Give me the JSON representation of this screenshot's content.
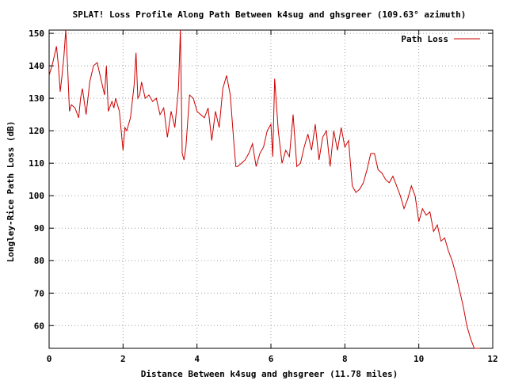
{
  "chart_data": {
    "type": "line",
    "title": "SPLAT! Loss Profile Along Path Between k4sug and ghsgreer (109.63° azimuth)",
    "xlabel": "Distance Between k4sug and ghsgreer (11.78 miles)",
    "ylabel": "Longley-Rice Path Loss (dB)",
    "xlim": [
      0,
      12
    ],
    "ylim": [
      53,
      151
    ],
    "xticks": [
      0,
      2,
      4,
      6,
      8,
      10,
      12
    ],
    "yticks": [
      60,
      70,
      80,
      90,
      100,
      110,
      120,
      130,
      140,
      150
    ],
    "grid": true,
    "legend": {
      "position": "top-right",
      "entries": [
        "Path Loss"
      ]
    },
    "colors": {
      "series": "#cc0000",
      "grid": "#a0a0a0",
      "axis": "#000000"
    },
    "series": [
      {
        "name": "Path Loss",
        "x": [
          0.0,
          0.1,
          0.2,
          0.25,
          0.3,
          0.35,
          0.4,
          0.45,
          0.5,
          0.55,
          0.6,
          0.7,
          0.8,
          0.85,
          0.9,
          1.0,
          1.1,
          1.2,
          1.3,
          1.4,
          1.5,
          1.55,
          1.6,
          1.7,
          1.75,
          1.8,
          1.9,
          2.0,
          2.05,
          2.1,
          2.2,
          2.3,
          2.35,
          2.4,
          2.45,
          2.5,
          2.6,
          2.7,
          2.8,
          2.9,
          3.0,
          3.1,
          3.2,
          3.3,
          3.4,
          3.5,
          3.55,
          3.6,
          3.65,
          3.7,
          3.8,
          3.9,
          4.0,
          4.1,
          4.2,
          4.3,
          4.4,
          4.5,
          4.6,
          4.7,
          4.8,
          4.9,
          5.0,
          5.05,
          5.1,
          5.2,
          5.3,
          5.4,
          5.5,
          5.6,
          5.7,
          5.8,
          5.9,
          6.0,
          6.05,
          6.1,
          6.2,
          6.3,
          6.4,
          6.5,
          6.6,
          6.7,
          6.8,
          6.9,
          7.0,
          7.1,
          7.2,
          7.3,
          7.4,
          7.5,
          7.6,
          7.7,
          7.8,
          7.9,
          8.0,
          8.1,
          8.2,
          8.3,
          8.4,
          8.5,
          8.6,
          8.7,
          8.8,
          8.9,
          9.0,
          9.1,
          9.2,
          9.3,
          9.4,
          9.5,
          9.6,
          9.7,
          9.8,
          9.9,
          10.0,
          10.1,
          10.2,
          10.3,
          10.4,
          10.5,
          10.6,
          10.7,
          10.8,
          10.9,
          11.0,
          11.1,
          11.2,
          11.3,
          11.4,
          11.5,
          11.55,
          11.6,
          11.65
        ],
        "values": [
          137,
          141,
          146,
          140,
          132,
          137,
          143,
          151,
          140,
          126,
          128,
          127,
          124,
          130,
          133,
          125,
          135,
          140,
          141,
          136,
          131,
          140,
          126,
          129,
          127,
          130,
          126,
          114,
          121,
          120,
          124,
          134,
          144,
          130,
          131,
          135,
          130,
          131,
          129,
          130,
          125,
          127,
          118,
          126,
          121,
          133,
          152,
          113,
          111,
          115,
          131,
          130,
          126,
          125,
          124,
          127,
          117,
          126,
          121,
          133,
          137,
          131,
          116,
          109,
          109,
          110,
          111,
          113,
          116,
          109,
          113,
          115,
          120,
          122,
          112,
          136,
          120,
          110,
          114,
          112,
          125,
          109,
          110,
          115,
          119,
          114,
          122,
          111,
          118,
          120,
          109,
          120,
          114,
          121,
          115,
          117,
          103,
          101,
          102,
          104,
          108,
          113,
          113,
          108,
          107,
          105,
          104,
          106,
          103,
          100,
          96,
          99,
          103,
          100,
          92,
          96,
          94,
          95,
          89,
          91,
          86,
          87,
          83,
          80,
          76,
          71,
          66,
          60,
          56,
          53,
          53,
          53,
          53
        ]
      }
    ]
  }
}
